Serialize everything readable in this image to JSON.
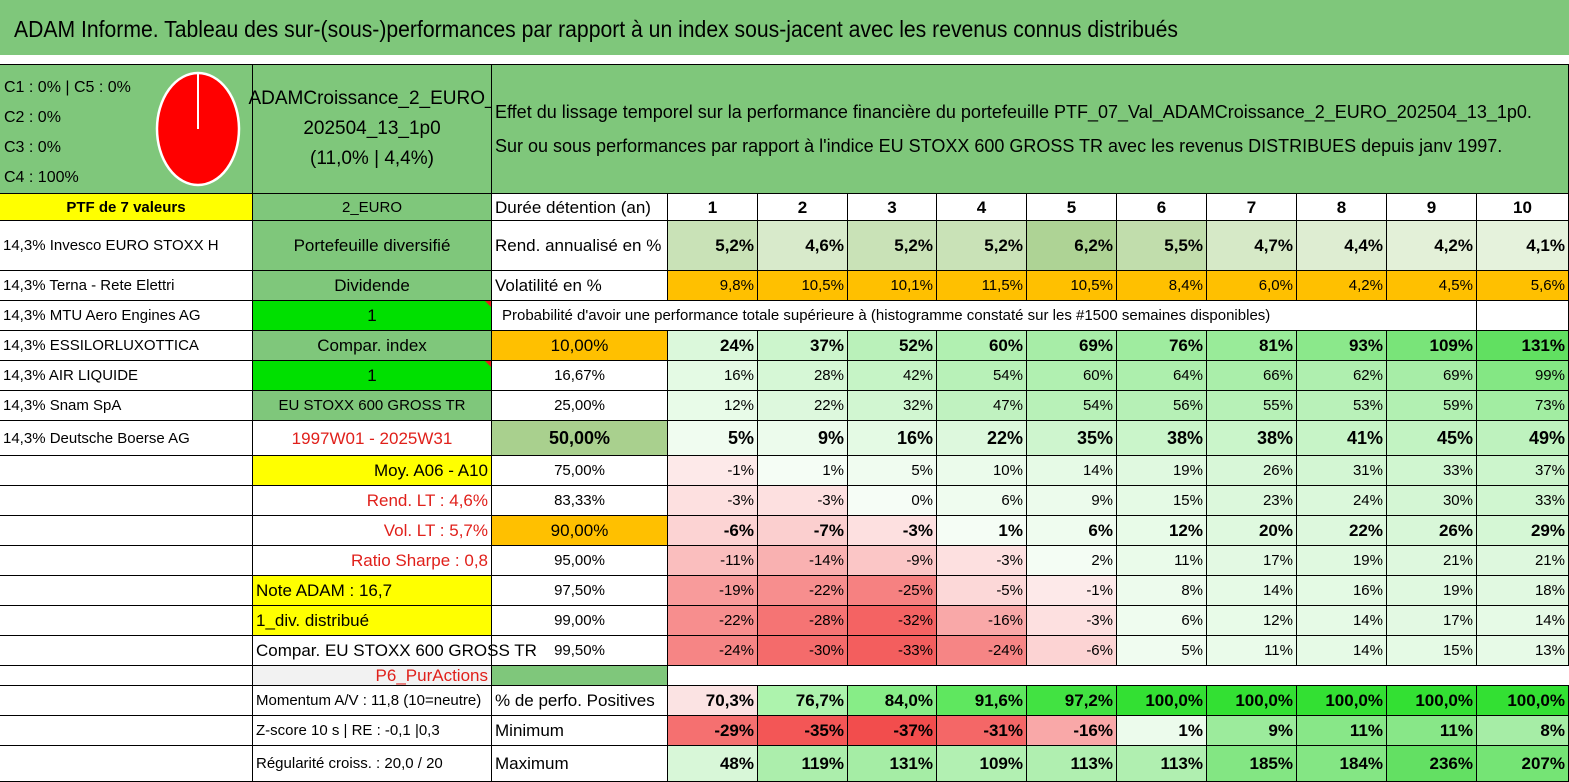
{
  "title": "ADAM Informe. Tableau des sur-(sous-)performances par rapport à un index sous-jacent avec les revenus connus distribués",
  "allocation": [
    "C1 : 0% | C5 : 0%",
    "C2 : 0%",
    "C3 : 0%",
    "C4 : 100%"
  ],
  "pie": {
    "fill_color": "#ff0000",
    "slice_color": "#ffffff",
    "c4_share": 1.0
  },
  "portfolio_box": {
    "line1": "ADAMCroissance_2_EURO_",
    "line2": "202504_13_1p0",
    "line3": "(11,0% | 4,4%)"
  },
  "description": {
    "line1": "Effet du lissage temporel sur la performance financière du portefeuille PTF_07_Val_ADAMCroissance_2_EURO_202504_13_1p0.",
    "line2": "Sur ou sous performances par rapport à l'indice EU STOXX 600 GROSS TR avec les revenus DISTRIBUES depuis janv 1997."
  },
  "left_col": [
    "PTF de 7 valeurs",
    "14,3% Invesco EURO STOXX H",
    "14,3% Terna - Rete Elettri",
    "14,3% MTU Aero Engines AG",
    "14,3% ESSILORLUXOTTICA",
    "14,3% AIR LIQUIDE",
    "14,3% Snam SpA",
    "14,3% Deutsche Boerse AG"
  ],
  "mid_col": [
    "2_EURO",
    "Portefeuille diversifié",
    "Dividende",
    "1",
    "Compar. index",
    "1",
    "EU STOXX 600 GROSS TR",
    "1997W01 - 2025W31",
    "Moy. A06 - A10",
    "Rend. LT : 4,6%",
    "Vol. LT : 5,7%",
    "Ratio Sharpe : 0,8",
    "Note ADAM : 16,7",
    "1_div. distribué",
    "Compar. EU STOXX 600 GROSS TR",
    "P6_PurActions",
    "Momentum A/V : 11,8 (10=neutre)",
    "Z-score 10 s | RE : -0,1 |0,3",
    "Régularité croiss. : 20,0 / 20"
  ],
  "years_label": "Durée détention (an)",
  "years": [
    "1",
    "2",
    "3",
    "4",
    "5",
    "6",
    "7",
    "8",
    "9",
    "10"
  ],
  "rend_label": "Rend. annualisé en %",
  "rend": [
    "5,2%",
    "4,6%",
    "5,2%",
    "5,2%",
    "6,2%",
    "5,5%",
    "4,7%",
    "4,4%",
    "4,2%",
    "4,1%"
  ],
  "vol_label": "Volatilité en %",
  "vol": [
    "9,8%",
    "10,5%",
    "10,1%",
    "11,5%",
    "10,5%",
    "8,4%",
    "6,0%",
    "4,2%",
    "4,5%",
    "5,6%"
  ],
  "prob_label": "Probabilité d'avoir une performance totale supérieure à (histogramme constaté sur les #1500 semaines disponibles)",
  "quantiles": [
    {
      "label": "10,00%",
      "values": [
        "24%",
        "37%",
        "52%",
        "60%",
        "69%",
        "76%",
        "81%",
        "93%",
        "109%",
        "131%"
      ]
    },
    {
      "label": "16,67%",
      "values": [
        "16%",
        "28%",
        "42%",
        "54%",
        "60%",
        "64%",
        "66%",
        "62%",
        "69%",
        "99%"
      ]
    },
    {
      "label": "25,00%",
      "values": [
        "12%",
        "22%",
        "32%",
        "47%",
        "54%",
        "56%",
        "55%",
        "53%",
        "59%",
        "73%"
      ]
    },
    {
      "label": "50,00%",
      "values": [
        "5%",
        "9%",
        "16%",
        "22%",
        "35%",
        "38%",
        "38%",
        "41%",
        "45%",
        "49%"
      ]
    },
    {
      "label": "75,00%",
      "values": [
        "-1%",
        "1%",
        "5%",
        "10%",
        "14%",
        "19%",
        "26%",
        "31%",
        "33%",
        "37%"
      ]
    },
    {
      "label": "83,33%",
      "values": [
        "-3%",
        "-3%",
        "0%",
        "6%",
        "9%",
        "15%",
        "23%",
        "24%",
        "30%",
        "33%"
      ]
    },
    {
      "label": "90,00%",
      "values": [
        "-6%",
        "-7%",
        "-3%",
        "1%",
        "6%",
        "12%",
        "20%",
        "22%",
        "26%",
        "29%"
      ]
    },
    {
      "label": "95,00%",
      "values": [
        "-11%",
        "-14%",
        "-9%",
        "-3%",
        "2%",
        "11%",
        "17%",
        "19%",
        "21%",
        "21%"
      ]
    },
    {
      "label": "97,50%",
      "values": [
        "-19%",
        "-22%",
        "-25%",
        "-5%",
        "-1%",
        "8%",
        "14%",
        "16%",
        "19%",
        "18%"
      ]
    },
    {
      "label": "99,00%",
      "values": [
        "-22%",
        "-28%",
        "-32%",
        "-16%",
        "-3%",
        "6%",
        "12%",
        "14%",
        "17%",
        "14%"
      ]
    },
    {
      "label": "99,50%",
      "values": [
        "-24%",
        "-30%",
        "-33%",
        "-24%",
        "-6%",
        "5%",
        "11%",
        "14%",
        "15%",
        "13%"
      ]
    }
  ],
  "stats": [
    {
      "label": "% de perfo. Positives",
      "values": [
        "70,3%",
        "76,7%",
        "84,0%",
        "91,6%",
        "97,2%",
        "100,0%",
        "100,0%",
        "100,0%",
        "100,0%",
        "100,0%"
      ]
    },
    {
      "label": "Minimum",
      "values": [
        "-29%",
        "-35%",
        "-37%",
        "-31%",
        "-16%",
        "1%",
        "9%",
        "11%",
        "11%",
        "8%"
      ]
    },
    {
      "label": "Maximum",
      "values": [
        "48%",
        "119%",
        "131%",
        "109%",
        "113%",
        "113%",
        "185%",
        "184%",
        "236%",
        "207%"
      ]
    }
  ],
  "colors": {
    "header_green": "#7fc77b",
    "light_green": "#a9d08e",
    "yellow": "#ffff00",
    "orange": "#ffc000",
    "bright_green": "#00e000",
    "accent_red": "#e0201b"
  }
}
